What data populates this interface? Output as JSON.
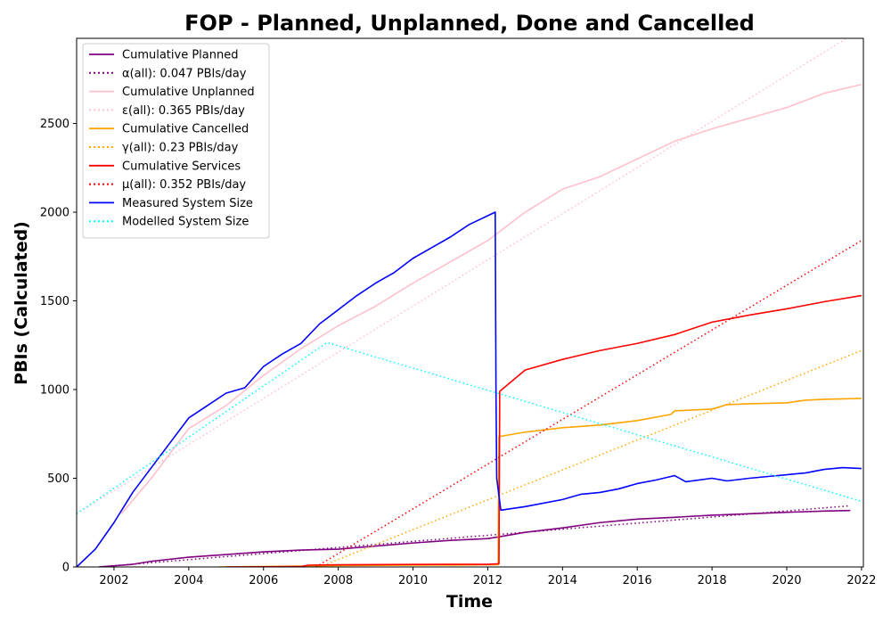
{
  "chart_data": {
    "type": "line",
    "title": "FOP - Planned, Unplanned, Done  and Cancelled",
    "xlabel": "Time",
    "ylabel": "PBIs (Calculated)",
    "xlim": [
      2001.0,
      2022.05
    ],
    "ylim": [
      0,
      2980
    ],
    "x_ticks": [
      2002,
      2004,
      2006,
      2008,
      2010,
      2012,
      2014,
      2016,
      2018,
      2020,
      2022
    ],
    "y_ticks": [
      0,
      500,
      1000,
      1500,
      2000,
      2500
    ],
    "grid": false,
    "legend_position": "top-left",
    "series": [
      {
        "name": "Cumulative Planned",
        "color": "#800080",
        "style": "solid",
        "x": [
          2001.6,
          2002.5,
          2003.0,
          2004.0,
          2005.0,
          2006.0,
          2007.0,
          2008.0,
          2009.0,
          2010.0,
          2011.0,
          2012.0,
          2012.3,
          2013.0,
          2014.0,
          2015.0,
          2016.0,
          2017.0,
          2018.0,
          2019.0,
          2020.0,
          2021.0,
          2021.7
        ],
        "y": [
          0,
          15,
          32,
          55,
          70,
          85,
          95,
          100,
          118,
          135,
          150,
          160,
          170,
          195,
          220,
          250,
          270,
          280,
          292,
          300,
          308,
          315,
          318
        ]
      },
      {
        "name": "α(all): 0.047 PBIs/day",
        "color": "#800080",
        "style": "dotted",
        "x": [
          2001.6,
          2021.7
        ],
        "y": [
          0,
          345
        ]
      },
      {
        "name": "Cumulative Unplanned",
        "color": "#ffc0cb",
        "style": "solid",
        "x": [
          2002.2,
          2003.0,
          2004.0,
          2005.0,
          2006.0,
          2007.0,
          2008.0,
          2009.0,
          2010.0,
          2011.0,
          2012.0,
          2013.0,
          2014.0,
          2015.0,
          2016.0,
          2017.0,
          2018.0,
          2019.0,
          2020.0,
          2021.0,
          2022.0
        ],
        "y": [
          300,
          500,
          780,
          910,
          1080,
          1230,
          1360,
          1470,
          1600,
          1720,
          1840,
          2000,
          2130,
          2200,
          2300,
          2400,
          2470,
          2530,
          2590,
          2670,
          2720
        ]
      },
      {
        "name": "ε(all): 0.365 PBIs/day",
        "color": "#ffc0cb",
        "style": "dotted",
        "x": [
          2001.0,
          2021.6
        ],
        "y": [
          300,
          2980
        ]
      },
      {
        "name": "Cumulative Cancelled",
        "color": "#ffa500",
        "style": "solid",
        "x": [
          2004.8,
          2007.0,
          2008.0,
          2010.0,
          2012.0,
          2012.28,
          2012.3,
          2013.0,
          2014.0,
          2015.0,
          2016.0,
          2016.9,
          2017.0,
          2018.0,
          2018.4,
          2019.0,
          2020.0,
          2020.5,
          2021.0,
          2022.0
        ],
        "y": [
          0,
          5,
          8,
          10,
          12,
          13,
          735,
          760,
          785,
          800,
          825,
          860,
          880,
          890,
          915,
          920,
          925,
          940,
          945,
          950
        ]
      },
      {
        "name": "γ(all): 0.23 PBIs/day",
        "color": "#ffa500",
        "style": "dotted",
        "x": [
          2007.5,
          2022.0
        ],
        "y": [
          0,
          1220
        ]
      },
      {
        "name": "Cumulative Services",
        "color": "#ff0000",
        "style": "solid",
        "x": [
          2005.0,
          2007.0,
          2007.2,
          2008.0,
          2010.0,
          2012.0,
          2012.3,
          2012.32,
          2013.0,
          2014.0,
          2015.0,
          2016.0,
          2017.0,
          2018.0,
          2019.0,
          2020.0,
          2021.0,
          2022.0
        ],
        "y": [
          0,
          2,
          10,
          12,
          14,
          15,
          18,
          990,
          1110,
          1170,
          1220,
          1260,
          1310,
          1380,
          1420,
          1455,
          1495,
          1530
        ]
      },
      {
        "name": "μ(all): 0.352 PBIs/day",
        "color": "#ff0000",
        "style": "dotted",
        "x": [
          2007.4,
          2022.0
        ],
        "y": [
          0,
          1840
        ]
      },
      {
        "name": "Measured System Size",
        "color": "#0000ff",
        "style": "solid",
        "x": [
          2001.0,
          2001.5,
          2002.0,
          2002.5,
          2003.0,
          2003.5,
          2004.0,
          2004.5,
          2005.0,
          2005.5,
          2006.0,
          2006.5,
          2007.0,
          2007.5,
          2008.0,
          2008.5,
          2009.0,
          2009.5,
          2010.0,
          2010.5,
          2011.0,
          2011.5,
          2012.0,
          2012.2,
          2012.22,
          2012.24,
          2012.3,
          2012.35,
          2013.0,
          2014.0,
          2014.5,
          2015.0,
          2015.5,
          2016.0,
          2016.5,
          2017.0,
          2017.3,
          2018.0,
          2018.4,
          2019.0,
          2019.5,
          2020.0,
          2020.5,
          2021.0,
          2021.5,
          2022.0
        ],
        "y": [
          0,
          100,
          250,
          420,
          560,
          700,
          840,
          910,
          980,
          1010,
          1130,
          1200,
          1260,
          1370,
          1450,
          1530,
          1600,
          1660,
          1740,
          1800,
          1860,
          1930,
          1980,
          2000,
          1000,
          500,
          400,
          320,
          340,
          380,
          410,
          420,
          440,
          470,
          490,
          515,
          480,
          500,
          485,
          500,
          510,
          520,
          530,
          550,
          560,
          555
        ]
      },
      {
        "name": "Modelled System Size",
        "color": "#00ffff",
        "style": "dotted",
        "x": [
          2001.0,
          2007.7,
          2022.0
        ],
        "y": [
          300,
          1265,
          370
        ]
      }
    ]
  }
}
